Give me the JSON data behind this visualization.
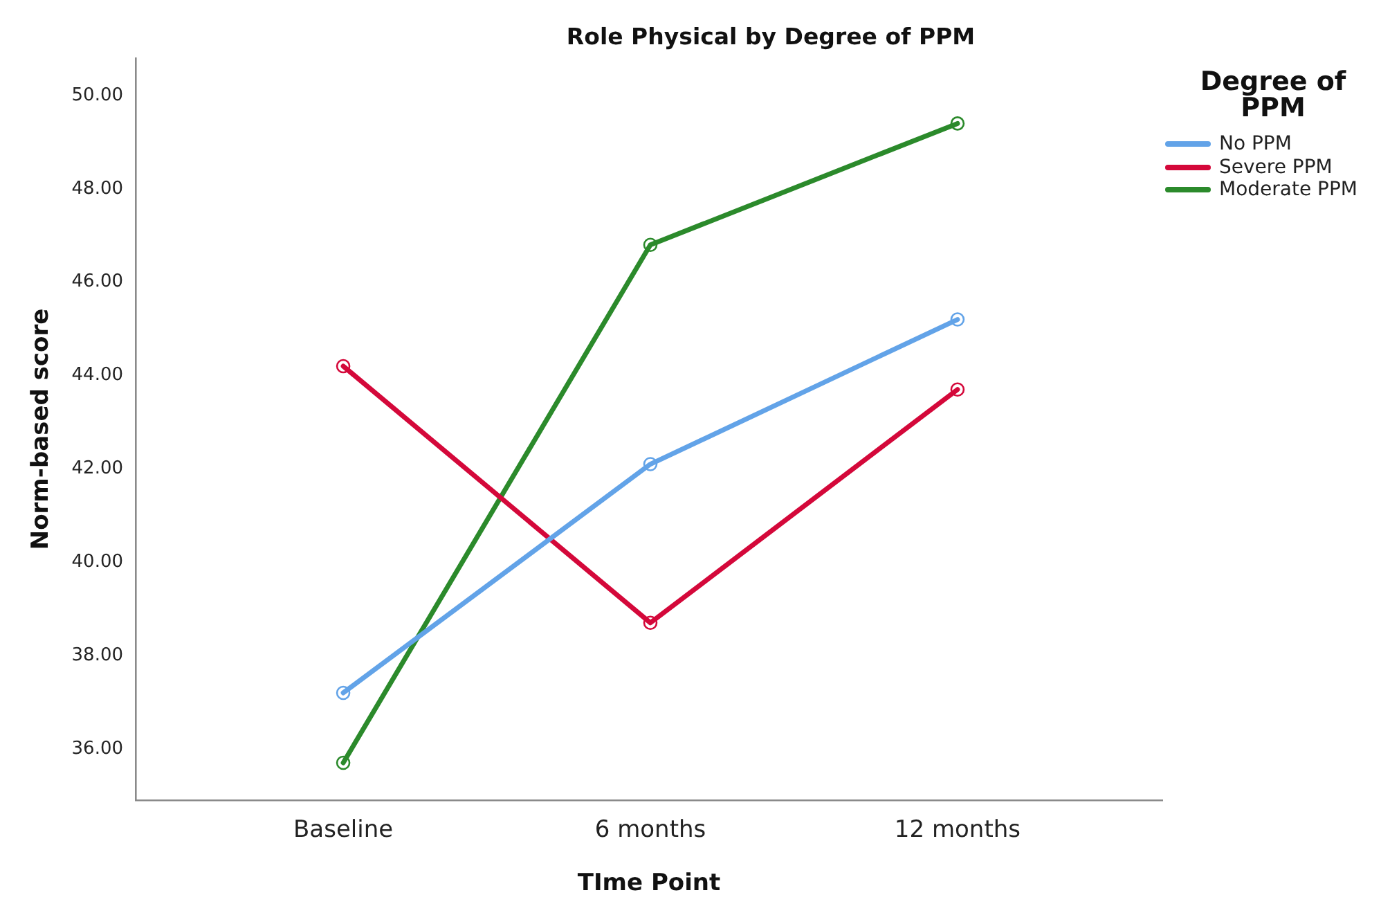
{
  "chart_data": {
    "type": "line",
    "title": "Role Physical by Degree of PPM",
    "xlabel": "TIme Point",
    "ylabel": "Norm-based score",
    "legend_title": "Degree of PPM",
    "categories": [
      "Baseline",
      "6 months",
      "12 months"
    ],
    "series": [
      {
        "name": "No PPM",
        "color": "#62a3e8",
        "values": [
          37.2,
          42.1,
          45.2
        ]
      },
      {
        "name": "Severe PPM",
        "color": "#d4083a",
        "values": [
          44.2,
          38.7,
          43.7
        ]
      },
      {
        "name": "Moderate PPM",
        "color": "#2b8a2b",
        "values": [
          35.7,
          46.8,
          49.4
        ]
      }
    ],
    "ylim": [
      34.9,
      50.8
    ],
    "yticks": [
      {
        "value": 36,
        "label": "36.00"
      },
      {
        "value": 38,
        "label": "38.00"
      },
      {
        "value": 40,
        "label": "40.00"
      },
      {
        "value": 42,
        "label": "42.00"
      },
      {
        "value": 44,
        "label": "44.00"
      },
      {
        "value": 46,
        "label": "46.00"
      },
      {
        "value": 48,
        "label": "48.00"
      },
      {
        "value": 50,
        "label": "50.00"
      }
    ],
    "grid": false,
    "legend": "top right",
    "marker": "circle",
    "line_style": "solid"
  }
}
